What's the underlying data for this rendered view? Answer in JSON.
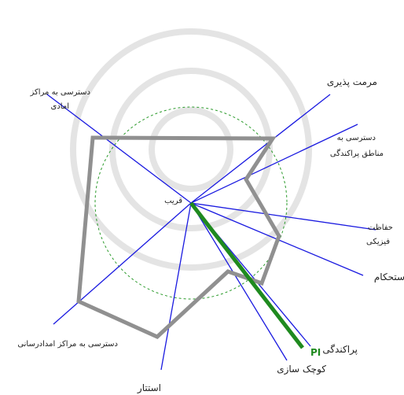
{
  "nodes": [
    {
      "label": "دسترسی به مراکز"
    },
    {
      "label": "امادی"
    },
    {
      "label": "مرمت پذیری"
    },
    {
      "label": "دسترسی به"
    },
    {
      "label": "مناطق پراکندگی"
    },
    {
      "label": "حفاظت"
    },
    {
      "label": "فیزیکی"
    },
    {
      "label": "ستحکام"
    },
    {
      "label": "پراکندگی"
    },
    {
      "label": "PI"
    },
    {
      "label": "کوچک سازی"
    },
    {
      "label": "استتار"
    },
    {
      "label": "دسترسی به مراکز امدادرسانی"
    },
    {
      "label": "قریب"
    }
  ]
}
